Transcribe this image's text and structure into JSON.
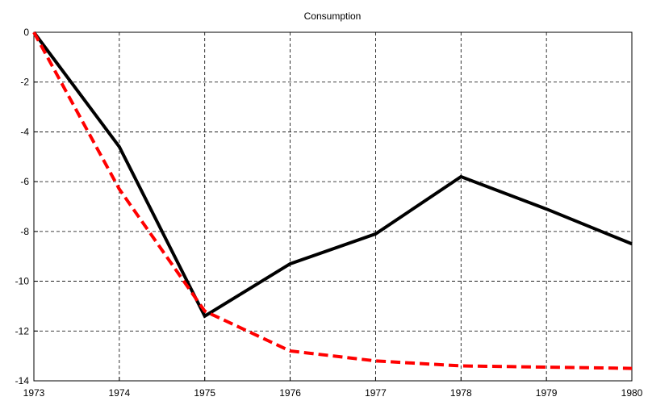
{
  "chart_data": {
    "type": "line",
    "title": "Consumption",
    "x": [
      1973,
      1974,
      1975,
      1976,
      1977,
      1978,
      1979,
      1980
    ],
    "series": [
      {
        "color": "#000000",
        "dash": false,
        "values": [
          0,
          -4.6,
          -11.4,
          -9.3,
          -8.1,
          -5.8,
          -7.1,
          -8.5
        ]
      },
      {
        "color": "#ff0000",
        "dash": true,
        "values": [
          0,
          -6.3,
          -11.2,
          -12.8,
          -13.2,
          -13.4,
          -13.45,
          -13.5
        ]
      }
    ],
    "xlim": [
      1973,
      1980
    ],
    "xticks": [
      1973,
      1974,
      1975,
      1976,
      1977,
      1978,
      1979,
      1980
    ],
    "ylim": [
      -14,
      0
    ],
    "yticks": [
      -14,
      -12,
      -10,
      -8,
      -6,
      -4,
      -2,
      0
    ],
    "grid": true
  }
}
